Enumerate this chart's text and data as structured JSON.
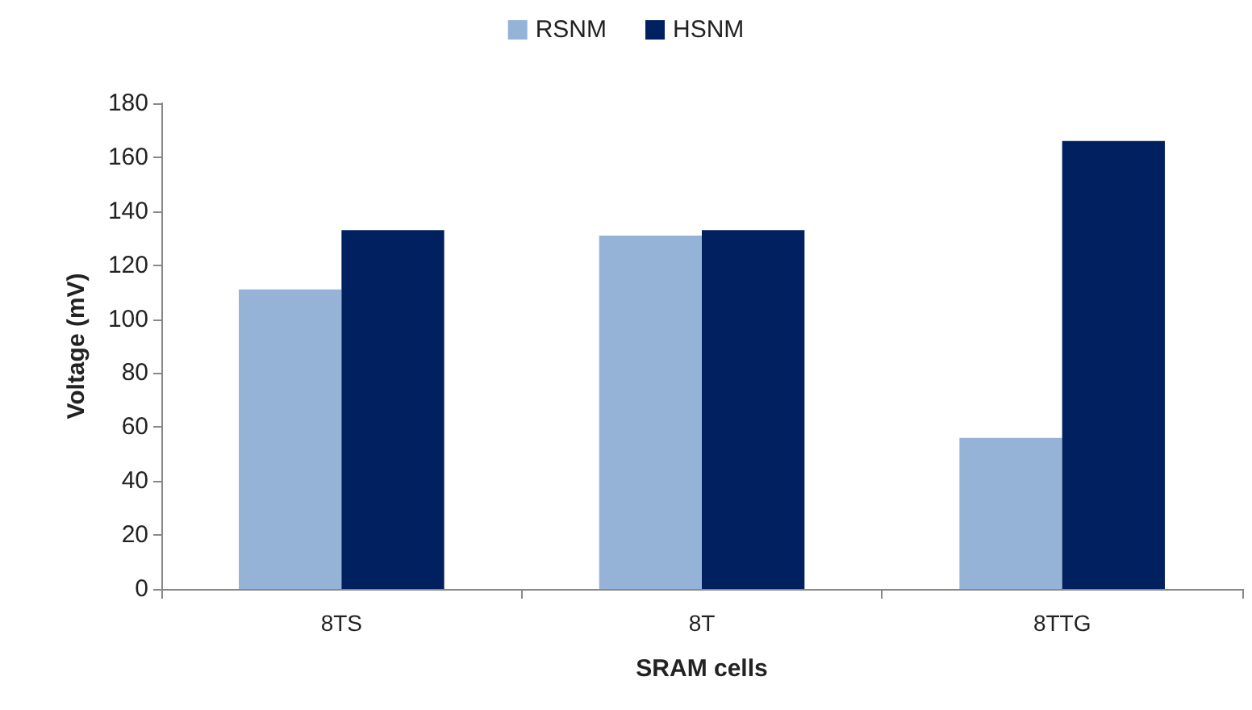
{
  "chart_data": {
    "type": "bar",
    "xlabel": "SRAM cells",
    "ylabel": "Voltage (mV)",
    "categories": [
      "8TS",
      "8T",
      "8TTG"
    ],
    "series": [
      {
        "name": "RSNM",
        "color": "#95b3d7",
        "values": [
          111,
          131,
          56
        ]
      },
      {
        "name": "HSNM",
        "color": "#002060",
        "values": [
          133,
          133,
          166
        ]
      }
    ],
    "ylim": [
      0,
      180
    ],
    "yticks": [
      0,
      20,
      40,
      60,
      80,
      100,
      120,
      140,
      160,
      180
    ],
    "grid": false,
    "legend": "top"
  }
}
